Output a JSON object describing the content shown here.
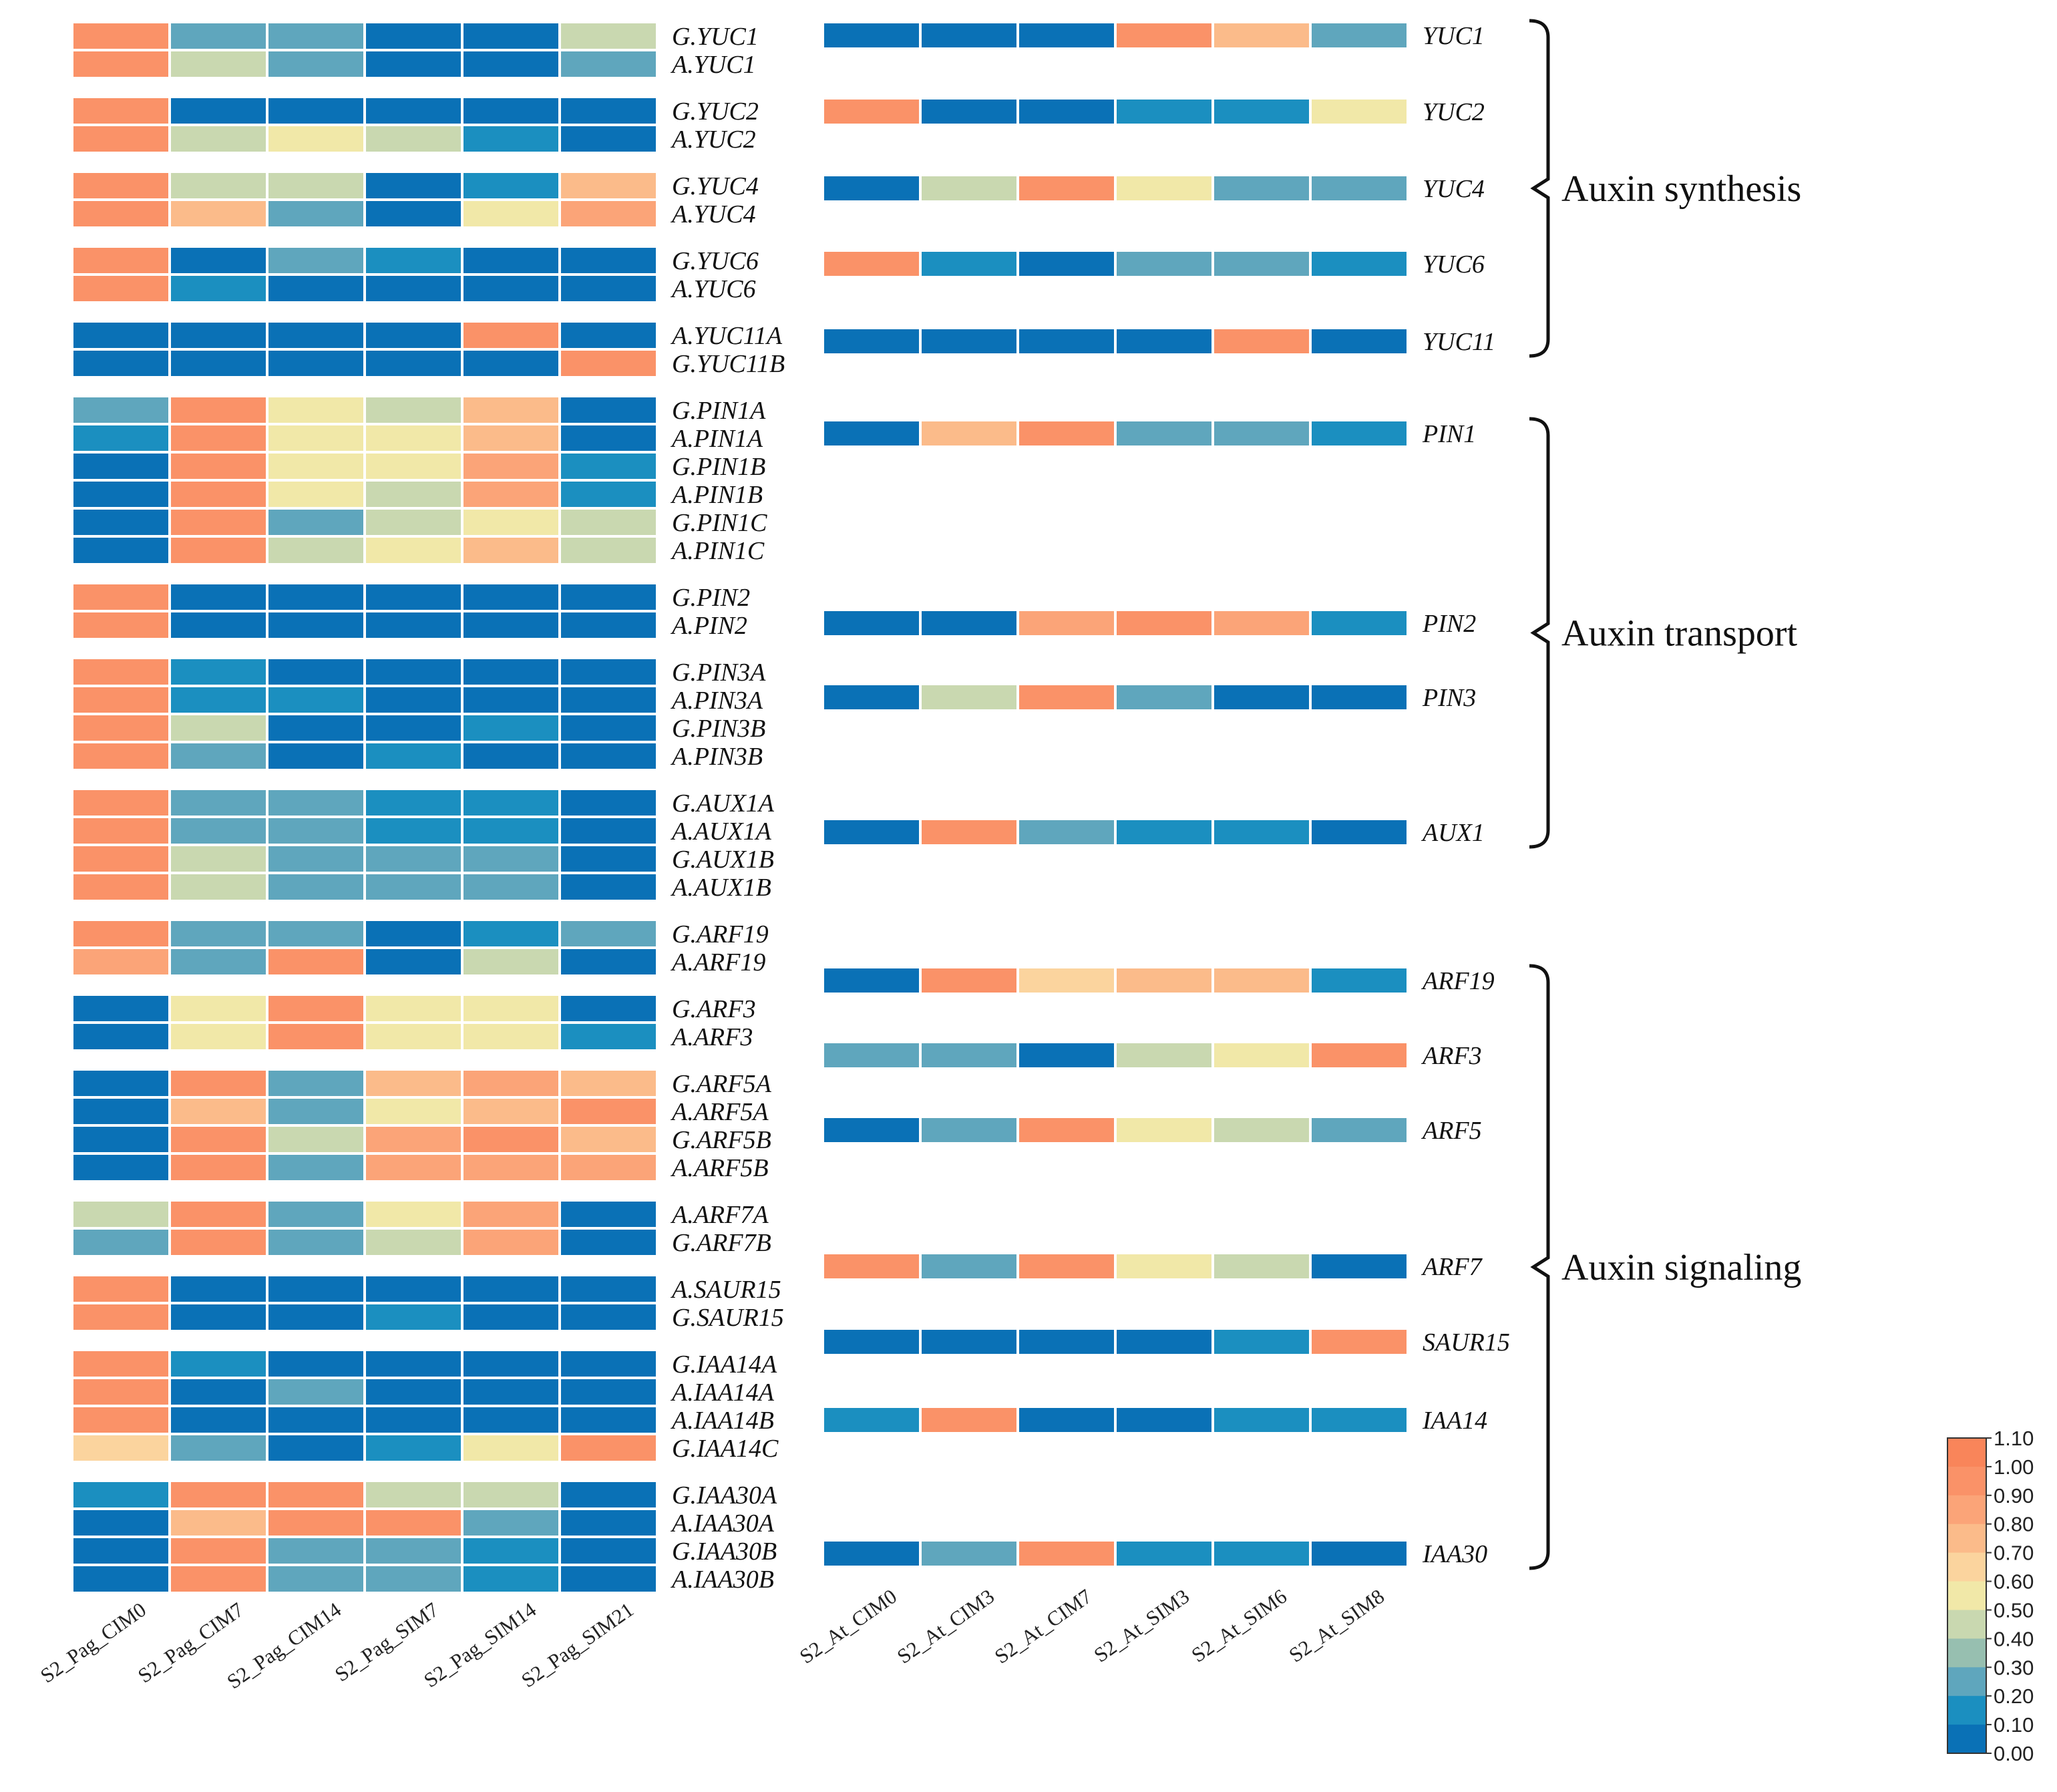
{
  "chart_data": {
    "type": "heatmap",
    "colorbar": {
      "min": 0,
      "max": 1.1,
      "ticks": [
        "1.10",
        "1.00",
        "0.90",
        "0.80",
        "0.70",
        "0.60",
        "0.50",
        "0.40",
        "0.30",
        "0.20",
        "0.10",
        "0.00"
      ],
      "colors": [
        "#f9855a",
        "#fa9268",
        "#fba478",
        "#fbbb8a",
        "#fbd49e",
        "#f1e8a8",
        "#c9d8b0",
        "#97bfb0",
        "#5fa6bd",
        "#1b8fc0",
        "#0a71b6"
      ]
    },
    "left_panel": {
      "columns": [
        "S2_Pag_CIM0",
        "S2_Pag_CIM7",
        "S2_Pag_CIM14",
        "S2_Pag_SIM7",
        "S2_Pag_SIM14",
        "S2_Pag_SIM21"
      ],
      "blocks": [
        {
          "rows": [
            {
              "gene": "G.YUC1",
              "values": [
                0.95,
                0.3,
                0.25,
                0.05,
                0.05,
                0.4
              ]
            },
            {
              "gene": "A.YUC1",
              "values": [
                0.95,
                0.4,
                0.3,
                0.05,
                0.05,
                0.25
              ]
            }
          ]
        },
        {
          "rows": [
            {
              "gene": "G.YUC2",
              "values": [
                0.95,
                0.05,
                0.05,
                0.05,
                0.05,
                0.05
              ]
            },
            {
              "gene": "A.YUC2",
              "values": [
                0.95,
                0.4,
                0.6,
                0.4,
                0.15,
                0.05
              ]
            }
          ]
        },
        {
          "rows": [
            {
              "gene": "G.YUC4",
              "values": [
                0.95,
                0.4,
                0.4,
                0.05,
                0.15,
                0.75
              ]
            },
            {
              "gene": "A.YUC4",
              "values": [
                0.95,
                0.75,
                0.25,
                0.05,
                0.5,
                0.85
              ]
            }
          ]
        },
        {
          "rows": [
            {
              "gene": "G.YUC6",
              "values": [
                0.95,
                0.05,
                0.25,
                0.15,
                0.05,
                0.05
              ]
            },
            {
              "gene": "A.YUC6",
              "values": [
                0.95,
                0.15,
                0.05,
                0.05,
                0.05,
                0.05
              ]
            }
          ]
        },
        {
          "rows": [
            {
              "gene": "A.YUC11A",
              "values": [
                0.05,
                0.05,
                0.05,
                0.05,
                0.95,
                0.05
              ]
            },
            {
              "gene": "G.YUC11B",
              "values": [
                0.05,
                0.05,
                0.05,
                0.05,
                0.05,
                0.95
              ]
            }
          ]
        },
        {
          "rows": [
            {
              "gene": "G.PIN1A",
              "values": [
                0.25,
                0.95,
                0.5,
                0.4,
                0.75,
                0.05
              ]
            },
            {
              "gene": "A.PIN1A",
              "values": [
                0.15,
                0.95,
                0.6,
                0.5,
                0.75,
                0.05
              ]
            },
            {
              "gene": "G.PIN1B",
              "values": [
                0.05,
                0.95,
                0.6,
                0.5,
                0.85,
                0.15
              ]
            },
            {
              "gene": "A.PIN1B",
              "values": [
                0.05,
                0.95,
                0.6,
                0.4,
                0.85,
                0.15
              ]
            },
            {
              "gene": "G.PIN1C",
              "values": [
                0.05,
                0.95,
                0.3,
                0.4,
                0.5,
                0.4
              ]
            },
            {
              "gene": "A.PIN1C",
              "values": [
                0.05,
                0.95,
                0.4,
                0.6,
                0.75,
                0.4
              ]
            }
          ]
        },
        {
          "rows": [
            {
              "gene": "G.PIN2",
              "values": [
                0.95,
                0.05,
                0.05,
                0.05,
                0.05,
                0.05
              ]
            },
            {
              "gene": "A.PIN2",
              "values": [
                0.95,
                0.05,
                0.05,
                0.05,
                0.05,
                0.05
              ]
            }
          ]
        },
        {
          "rows": [
            {
              "gene": "G.PIN3A",
              "values": [
                0.95,
                0.15,
                0.05,
                0.05,
                0.05,
                0.05
              ]
            },
            {
              "gene": "A.PIN3A",
              "values": [
                0.95,
                0.15,
                0.1,
                0.05,
                0.05,
                0.05
              ]
            },
            {
              "gene": "G.PIN3B",
              "values": [
                0.95,
                0.4,
                0.05,
                0.05,
                0.15,
                0.05
              ]
            },
            {
              "gene": "A.PIN3B",
              "values": [
                0.95,
                0.3,
                0.05,
                0.15,
                0.05,
                0.05
              ]
            }
          ]
        },
        {
          "rows": [
            {
              "gene": "G.AUX1A",
              "values": [
                0.95,
                0.25,
                0.3,
                0.15,
                0.15,
                0.05
              ]
            },
            {
              "gene": "A.AUX1A",
              "values": [
                0.95,
                0.25,
                0.3,
                0.15,
                0.15,
                0.05
              ]
            },
            {
              "gene": "G.AUX1B",
              "values": [
                0.95,
                0.4,
                0.25,
                0.3,
                0.25,
                0.05
              ]
            },
            {
              "gene": "A.AUX1B",
              "values": [
                0.95,
                0.4,
                0.25,
                0.3,
                0.25,
                0.05
              ]
            }
          ]
        },
        {
          "rows": [
            {
              "gene": "G.ARF19",
              "values": [
                0.95,
                0.3,
                0.25,
                0.05,
                0.15,
                0.3
              ]
            },
            {
              "gene": "A.ARF19",
              "values": [
                0.85,
                0.3,
                0.95,
                0.05,
                0.4,
                0.05
              ]
            }
          ]
        },
        {
          "rows": [
            {
              "gene": "G.ARF3",
              "values": [
                0.05,
                0.6,
                0.95,
                0.6,
                0.6,
                0.05
              ]
            },
            {
              "gene": "A.ARF3",
              "values": [
                0.05,
                0.5,
                0.95,
                0.6,
                0.6,
                0.15
              ]
            }
          ]
        },
        {
          "rows": [
            {
              "gene": "G.ARF5A",
              "values": [
                0.05,
                0.95,
                0.3,
                0.75,
                0.85,
                0.75
              ]
            },
            {
              "gene": "A.ARF5A",
              "values": [
                0.05,
                0.75,
                0.25,
                0.6,
                0.75,
                0.95
              ]
            },
            {
              "gene": "G.ARF5B",
              "values": [
                0.05,
                0.95,
                0.4,
                0.85,
                0.95,
                0.75
              ]
            },
            {
              "gene": "A.ARF5B",
              "values": [
                0.05,
                0.95,
                0.3,
                0.85,
                0.85,
                0.85
              ]
            }
          ]
        },
        {
          "rows": [
            {
              "gene": "A.ARF7A",
              "values": [
                0.4,
                0.95,
                0.25,
                0.5,
                0.85,
                0.05
              ]
            },
            {
              "gene": "G.ARF7B",
              "values": [
                0.3,
                0.95,
                0.3,
                0.4,
                0.85,
                0.05
              ]
            }
          ]
        },
        {
          "rows": [
            {
              "gene": "A.SAUR15",
              "values": [
                0.95,
                0.05,
                0.05,
                0.05,
                0.05,
                0.05
              ]
            },
            {
              "gene": "G.SAUR15",
              "values": [
                0.95,
                0.05,
                0.05,
                0.15,
                0.05,
                0.05
              ]
            }
          ]
        },
        {
          "rows": [
            {
              "gene": "G.IAA14A",
              "values": [
                0.95,
                0.15,
                0.05,
                0.05,
                0.05,
                0.05
              ]
            },
            {
              "gene": "A.IAA14A",
              "values": [
                0.95,
                0.05,
                0.25,
                0.05,
                0.05,
                0.05
              ]
            },
            {
              "gene": "A.IAA14B",
              "values": [
                0.95,
                0.05,
                0.05,
                0.05,
                0.05,
                0.05
              ]
            },
            {
              "gene": "G.IAA14C",
              "values": [
                0.65,
                0.25,
                0.05,
                0.15,
                0.5,
                0.95
              ]
            }
          ]
        },
        {
          "rows": [
            {
              "gene": "G.IAA30A",
              "values": [
                0.15,
                0.95,
                0.95,
                0.4,
                0.4,
                0.05
              ]
            },
            {
              "gene": "A.IAA30A",
              "values": [
                0.05,
                0.75,
                0.95,
                0.95,
                0.25,
                0.05
              ]
            },
            {
              "gene": "G.IAA30B",
              "values": [
                0.05,
                0.95,
                0.25,
                0.3,
                0.15,
                0.05
              ]
            },
            {
              "gene": "A.IAA30B",
              "values": [
                0.05,
                0.95,
                0.3,
                0.25,
                0.15,
                0.05
              ]
            }
          ]
        }
      ]
    },
    "right_panel": {
      "columns": [
        "S2_At_CIM0",
        "S2_At_CIM3",
        "S2_At_CIM7",
        "S2_At_SIM3",
        "S2_At_SIM6",
        "S2_At_SIM8"
      ],
      "rows": [
        {
          "gene": "YUC1",
          "values": [
            0.05,
            0.05,
            0.05,
            0.95,
            0.75,
            0.3
          ]
        },
        {
          "gene": "YUC2",
          "values": [
            0.95,
            0.05,
            0.05,
            0.15,
            0.15,
            0.5
          ]
        },
        {
          "gene": "YUC4",
          "values": [
            0.05,
            0.4,
            0.95,
            0.6,
            0.25,
            0.3
          ]
        },
        {
          "gene": "YUC6",
          "values": [
            0.95,
            0.15,
            0.05,
            0.25,
            0.25,
            0.15
          ]
        },
        {
          "gene": "YUC11",
          "values": [
            0.05,
            0.05,
            0.05,
            0.05,
            0.95,
            0.05
          ]
        },
        {
          "gene": "PIN1",
          "values": [
            0.05,
            0.75,
            0.95,
            0.3,
            0.25,
            0.15
          ]
        },
        {
          "gene": "PIN2",
          "values": [
            0.05,
            0.05,
            0.85,
            0.95,
            0.85,
            0.15
          ]
        },
        {
          "gene": "PIN3",
          "values": [
            0.05,
            0.4,
            0.95,
            0.25,
            0.05,
            0.05
          ]
        },
        {
          "gene": "AUX1",
          "values": [
            0.05,
            0.95,
            0.25,
            0.15,
            0.15,
            0.05
          ]
        },
        {
          "gene": "ARF19",
          "values": [
            0.05,
            0.95,
            0.65,
            0.75,
            0.75,
            0.15
          ]
        },
        {
          "gene": "ARF3",
          "values": [
            0.25,
            0.3,
            0.05,
            0.4,
            0.6,
            0.95
          ]
        },
        {
          "gene": "ARF5",
          "values": [
            0.05,
            0.25,
            0.95,
            0.5,
            0.4,
            0.3
          ]
        },
        {
          "gene": "ARF7",
          "values": [
            0.95,
            0.3,
            0.95,
            0.5,
            0.4,
            0.05
          ]
        },
        {
          "gene": "SAUR15",
          "values": [
            0.05,
            0.05,
            0.05,
            0.05,
            0.15,
            0.95
          ]
        },
        {
          "gene": "IAA14",
          "values": [
            0.15,
            0.95,
            0.05,
            0.05,
            0.15,
            0.15
          ]
        },
        {
          "gene": "IAA30",
          "values": [
            0.05,
            0.3,
            0.95,
            0.15,
            0.15,
            0.05
          ]
        }
      ]
    },
    "groups": [
      {
        "label": "Auxin synthesis",
        "genes": [
          "YUC1",
          "YUC2",
          "YUC4",
          "YUC6",
          "YUC11"
        ]
      },
      {
        "label": "Auxin transport",
        "genes": [
          "PIN1",
          "PIN2",
          "PIN3",
          "AUX1"
        ]
      },
      {
        "label": "Auxin signaling",
        "genes": [
          "ARF19",
          "ARF3",
          "ARF5",
          "ARF7",
          "SAUR15",
          "IAA14",
          "IAA30"
        ]
      }
    ]
  }
}
